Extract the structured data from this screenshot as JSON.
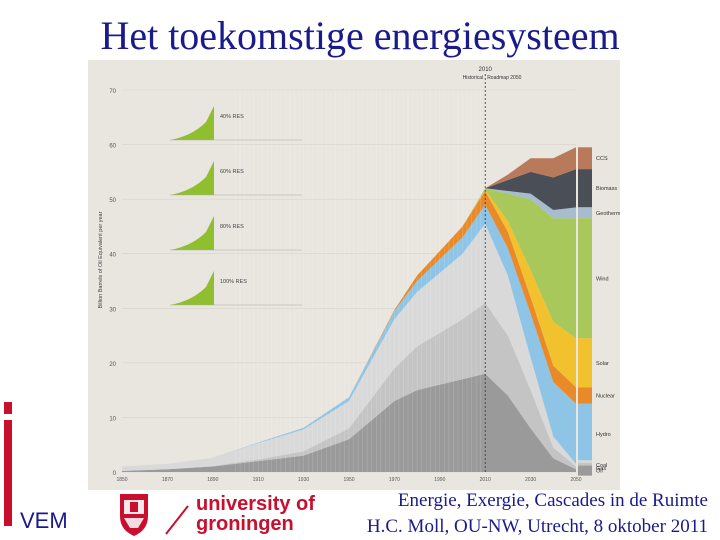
{
  "slide": {
    "title": "Het toekomstige energiesysteem",
    "footer_line1": "Energie, Exergie, Cascades in de Ruimte",
    "footer_line2": "H.C. Moll, OU-NW, Utrecht, 8 oktober 2011",
    "vem_label": "VEM",
    "university_name_line1": "university of",
    "university_name_line2": "groningen"
  },
  "colors": {
    "title": "#1a1a8c",
    "brand_red": "#c8102e",
    "ccs": "#b87a5a",
    "biomass": "#4a4f57",
    "geotherm": "#a8bcd0",
    "wind": "#a9c85c",
    "solar": "#f2c12e",
    "nuclear": "#e98a2a",
    "hydro": "#8ec4e6",
    "coal": "#d9d9d9",
    "gas": "#c4c4c4",
    "oil": "#9a9a9a",
    "inset_green": "#8fbf2e"
  },
  "chart_data": {
    "type": "area",
    "title": "",
    "ylabel": "Billion Barrels of Oil Equivalent per year",
    "ylim": [
      0,
      70
    ],
    "yticks": [
      0,
      10,
      20,
      30,
      40,
      50,
      60,
      70
    ],
    "xticks": [
      "1850",
      "1870",
      "1890",
      "1910",
      "1930",
      "1950",
      "1970",
      "1990",
      "2010",
      "2030",
      "2050"
    ],
    "divider": {
      "x": 2010,
      "label": "2010",
      "left_label": "Historical",
      "right_label": "Roadmap 2050"
    },
    "legend": [
      "CCS",
      "Biomass",
      "Geotherm",
      "Wind",
      "Solar",
      "Nuclear",
      "Hydro",
      "Coal",
      "Gas",
      "Oil"
    ],
    "insets": [
      "40% RES",
      "60% RES",
      "80% RES",
      "100% RES"
    ],
    "x": [
      1850,
      1870,
      1890,
      1910,
      1930,
      1950,
      1970,
      1980,
      1990,
      2000,
      2010,
      2020,
      2030,
      2040,
      2050
    ],
    "series": [
      {
        "name": "Oil",
        "values": [
          0.2,
          0.5,
          1.0,
          2.0,
          3.0,
          6.0,
          13.0,
          15.0,
          16.0,
          17.0,
          18.0,
          14.0,
          8.0,
          2.5,
          0.5
        ]
      },
      {
        "name": "Gas",
        "values": [
          0.0,
          0.0,
          0.1,
          0.3,
          0.8,
          2.0,
          6.0,
          8.0,
          9.5,
          11.0,
          13.0,
          11.0,
          7.0,
          2.0,
          0.5
        ]
      },
      {
        "name": "Coal",
        "values": [
          0.8,
          1.0,
          1.5,
          3.0,
          4.0,
          5.0,
          9.0,
          10.0,
          11.0,
          12.0,
          14.5,
          11.0,
          6.0,
          2.0,
          0.5
        ]
      },
      {
        "name": "Hydro",
        "values": [
          0.0,
          0.0,
          0.0,
          0.1,
          0.3,
          0.7,
          1.5,
          2.0,
          2.5,
          3.0,
          3.5,
          5.0,
          8.0,
          10.0,
          11.0
        ]
      },
      {
        "name": "Nuclear",
        "values": [
          0.0,
          0.0,
          0.0,
          0.0,
          0.0,
          0.0,
          0.2,
          1.0,
          1.5,
          2.0,
          2.5,
          3.0,
          3.0,
          3.0,
          3.0
        ]
      },
      {
        "name": "Solar",
        "values": [
          0.0,
          0.0,
          0.0,
          0.0,
          0.0,
          0.0,
          0.0,
          0.0,
          0.0,
          0.0,
          0.2,
          2.0,
          5.0,
          8.0,
          9.0
        ]
      },
      {
        "name": "Wind",
        "values": [
          0.0,
          0.0,
          0.0,
          0.0,
          0.0,
          0.0,
          0.0,
          0.0,
          0.0,
          0.0,
          0.3,
          5.0,
          13.0,
          19.0,
          22.0
        ]
      },
      {
        "name": "Geotherm",
        "values": [
          0.0,
          0.0,
          0.0,
          0.0,
          0.0,
          0.0,
          0.0,
          0.0,
          0.0,
          0.0,
          0.0,
          0.5,
          1.0,
          1.5,
          2.0
        ]
      },
      {
        "name": "Biomass",
        "values": [
          0.0,
          0.0,
          0.0,
          0.0,
          0.0,
          0.0,
          0.0,
          0.0,
          0.0,
          0.0,
          0.0,
          2.0,
          4.0,
          6.0,
          7.0
        ]
      },
      {
        "name": "CCS",
        "values": [
          0.0,
          0.0,
          0.0,
          0.0,
          0.0,
          0.0,
          0.0,
          0.0,
          0.0,
          0.0,
          0.0,
          1.0,
          2.5,
          3.5,
          4.0
        ]
      }
    ]
  }
}
